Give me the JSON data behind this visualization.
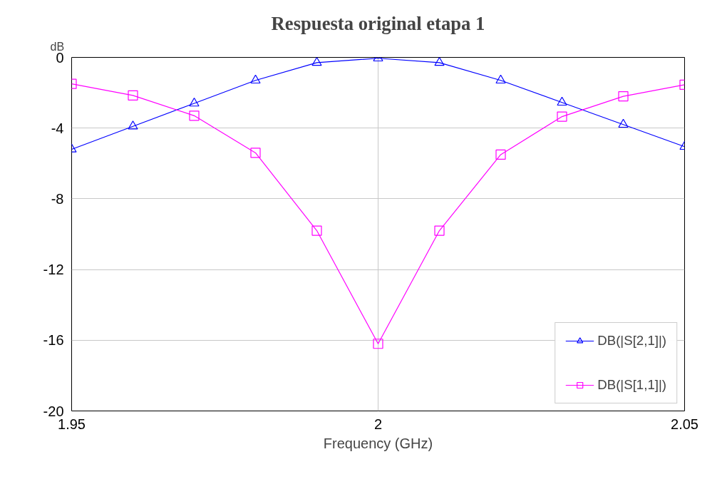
{
  "chart_data": {
    "type": "line",
    "title": "Respuesta original etapa 1",
    "xlabel": "Frequency (GHz)",
    "ylabel": "dB",
    "x": [
      1.95,
      1.96,
      1.97,
      1.98,
      1.99,
      2.0,
      2.01,
      2.02,
      2.03,
      2.04,
      2.05
    ],
    "series": [
      {
        "name": "DB(|S[2,1]|)",
        "color": "#0000ff",
        "marker": "triangle",
        "values": [
          -5.2,
          -3.9,
          -2.6,
          -1.3,
          -0.3,
          -0.05,
          -0.3,
          -1.3,
          -2.55,
          -3.8,
          -5.05
        ]
      },
      {
        "name": "DB(|S[1,1]|)",
        "color": "#ff00ff",
        "marker": "square",
        "values": [
          -1.5,
          -2.15,
          -3.3,
          -5.4,
          -9.8,
          -16.2,
          -9.8,
          -5.5,
          -3.35,
          -2.2,
          -1.55
        ]
      }
    ],
    "xlim": [
      1.95,
      2.05
    ],
    "xticks": [
      1.95,
      2,
      2.05
    ],
    "ylim": [
      -20,
      0
    ],
    "yticks": [
      -20,
      -16,
      -12,
      -8,
      -4,
      0
    ],
    "grid": true,
    "legend": "bottom right",
    "line_style": "solid"
  }
}
